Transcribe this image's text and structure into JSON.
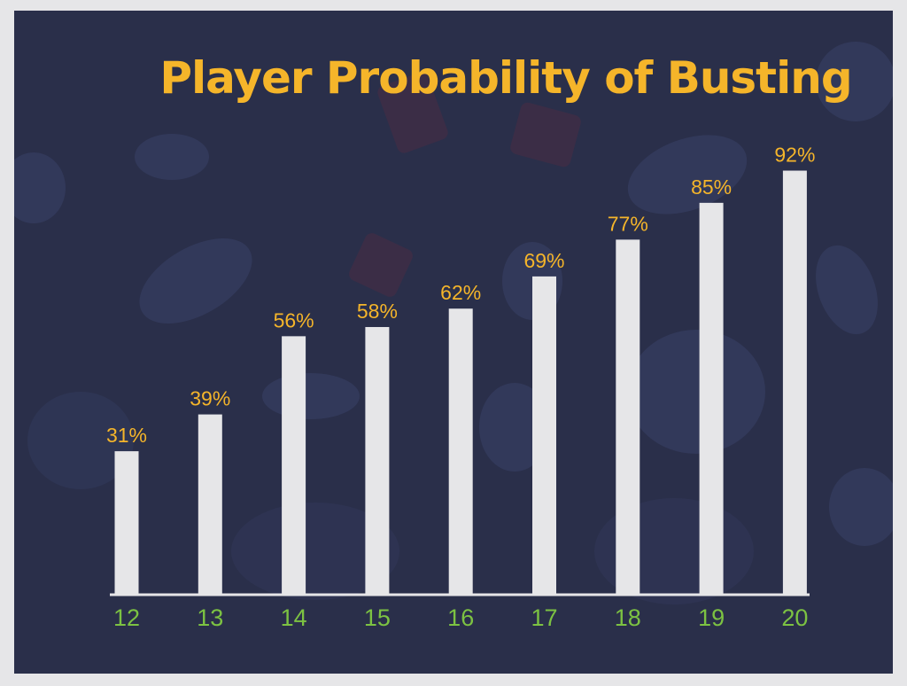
{
  "colors": {
    "background": "#2a2f4a",
    "title": "#f5b52a",
    "bar": "#e6e6e8",
    "value_label": "#f5b52a",
    "tick_label": "#7cc242",
    "axis_line": "#e6e6e8",
    "frame": "#e6e6e8"
  },
  "chart_data": {
    "type": "bar",
    "title": "Player Probability of Busting",
    "xlabel": "",
    "ylabel": "",
    "categories": [
      "12",
      "13",
      "14",
      "15",
      "16",
      "17",
      "18",
      "19",
      "20"
    ],
    "values": [
      31,
      39,
      56,
      58,
      62,
      69,
      77,
      85,
      92
    ],
    "value_labels": [
      "31%",
      "39%",
      "56%",
      "58%",
      "62%",
      "69%",
      "77%",
      "85%",
      "92%"
    ],
    "ylim": [
      0,
      100
    ],
    "grid": false,
    "legend": "none"
  }
}
